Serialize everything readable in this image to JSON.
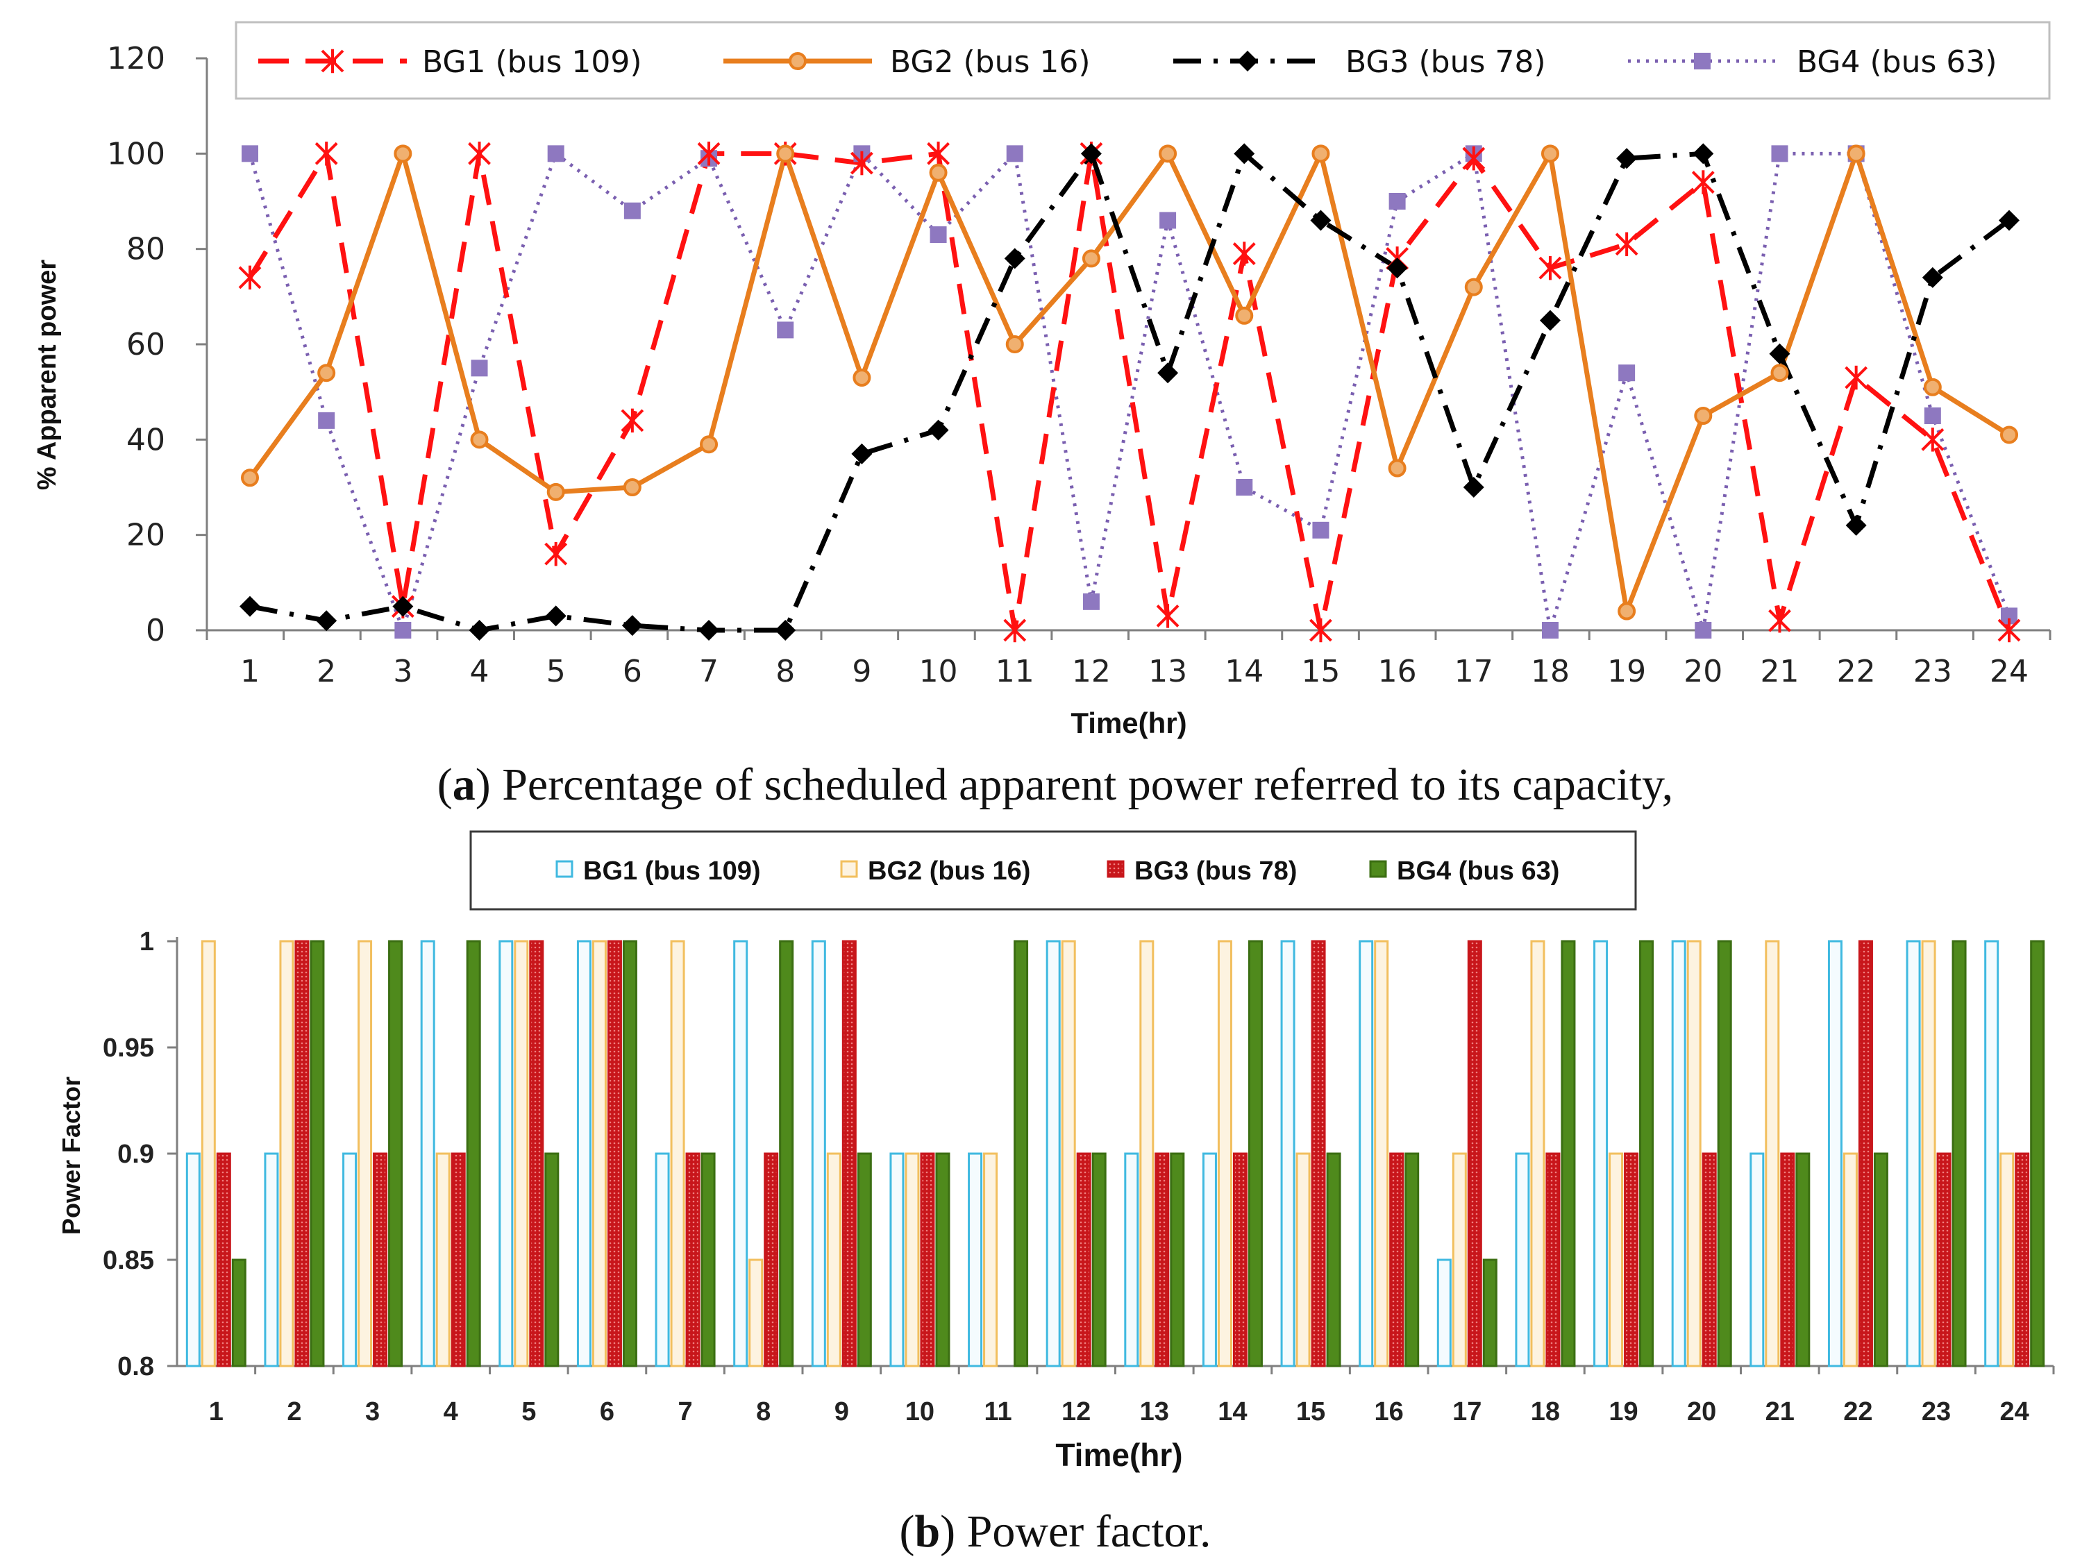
{
  "captions": {
    "a_letter": "a",
    "a_text": " Percentage of scheduled apparent power referred to its capacity,",
    "b_letter": "b",
    "b_text": " Power factor."
  },
  "colors": {
    "bg1_line": "#ff1111",
    "bg2_line": "#e87e1e",
    "bg3_line": "#000000",
    "bg4_line": "#7a5fb0",
    "bg4_marker": "#8e78c0",
    "bar_bg1": "#3fb9e0",
    "bar_bg2": "#f2bf5e",
    "bar_bg3": "#c8161b",
    "bar_bg4": "#3b6e12"
  },
  "chart_data": [
    {
      "type": "line",
      "title": "",
      "xlabel": "Time(hr)",
      "ylabel": "% Apparent power",
      "ylim": [
        0,
        120
      ],
      "yticks": [
        0,
        20,
        40,
        60,
        80,
        100,
        120
      ],
      "x": [
        1,
        2,
        3,
        4,
        5,
        6,
        7,
        8,
        9,
        10,
        11,
        12,
        13,
        14,
        15,
        16,
        17,
        18,
        19,
        20,
        21,
        22,
        23,
        24
      ],
      "legend_position": "top",
      "series": [
        {
          "name": "BG1 (bus 109)",
          "marker": "asterisk",
          "values": [
            74,
            100,
            5,
            100,
            16,
            44,
            100,
            100,
            98,
            100,
            0,
            100,
            3,
            79,
            0,
            78,
            99,
            76,
            81,
            94,
            2,
            53,
            40,
            0
          ]
        },
        {
          "name": "BG2 (bus 16)",
          "marker": "circle",
          "values": [
            32,
            54,
            100,
            40,
            29,
            30,
            39,
            100,
            53,
            96,
            60,
            78,
            100,
            66,
            100,
            34,
            72,
            100,
            4,
            45,
            54,
            100,
            51,
            41
          ]
        },
        {
          "name": "BG3 (bus 78)",
          "marker": "diamond",
          "values": [
            5,
            2,
            5,
            0,
            3,
            1,
            0,
            0,
            37,
            42,
            78,
            100,
            54,
            100,
            86,
            76,
            30,
            65,
            99,
            100,
            58,
            22,
            74,
            86
          ]
        },
        {
          "name": "BG4 (bus 63)",
          "marker": "square",
          "values": [
            100,
            44,
            0,
            55,
            100,
            88,
            99,
            63,
            100,
            83,
            100,
            6,
            86,
            30,
            21,
            90,
            100,
            0,
            54,
            0,
            100,
            100,
            45,
            3
          ]
        }
      ]
    },
    {
      "type": "bar",
      "title": "",
      "xlabel": "Time(hr)",
      "ylabel": "Power Factor",
      "ylim": [
        0.8,
        1
      ],
      "yticks": [
        "0.8",
        "0.85",
        "0.9",
        "0.95",
        "1"
      ],
      "categories": [
        "1",
        "2",
        "3",
        "4",
        "5",
        "6",
        "7",
        "8",
        "9",
        "10",
        "11",
        "12",
        "13",
        "14",
        "15",
        "16",
        "17",
        "18",
        "19",
        "20",
        "21",
        "22",
        "23",
        "24"
      ],
      "legend_position": "top",
      "series": [
        {
          "name": "BG1 (bus 109)",
          "values": [
            0.9,
            0.9,
            0.9,
            1,
            1,
            1,
            0.9,
            1,
            1,
            0.9,
            0.9,
            1,
            0.9,
            0.9,
            1,
            1,
            0.85,
            0.9,
            1,
            1,
            0.9,
            1,
            1,
            1
          ]
        },
        {
          "name": "BG2 (bus 16)",
          "values": [
            1,
            1,
            1,
            0.9,
            1,
            1,
            1,
            0.85,
            0.9,
            0.9,
            0.9,
            1,
            1,
            1,
            0.9,
            1,
            0.9,
            1,
            0.9,
            1,
            1,
            0.9,
            1,
            0.9
          ]
        },
        {
          "name": "BG3 (bus 78)",
          "values": [
            0.9,
            1,
            0.9,
            0.9,
            1,
            1,
            0.9,
            0.9,
            1,
            0.9,
            0.8,
            0.9,
            0.9,
            0.9,
            1,
            0.9,
            1,
            0.9,
            0.9,
            0.9,
            0.9,
            1,
            0.9,
            0.9
          ]
        },
        {
          "name": "BG4 (bus 63)",
          "values": [
            0.85,
            1,
            1,
            1,
            0.9,
            1,
            0.9,
            1,
            0.9,
            0.9,
            1,
            0.9,
            0.9,
            1,
            0.9,
            0.9,
            0.85,
            1,
            1,
            1,
            0.9,
            0.9,
            1,
            1
          ]
        }
      ]
    }
  ]
}
